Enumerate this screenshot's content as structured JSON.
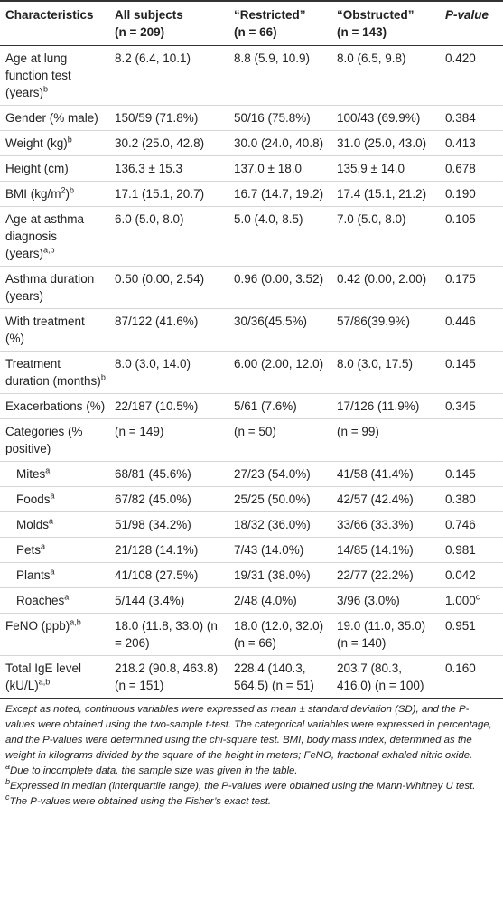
{
  "table": {
    "header": [
      [
        "Characteristics"
      ],
      [
        "All subjects",
        "(n = 209)"
      ],
      [
        "“Restricted”",
        "(n = 66)"
      ],
      [
        "“Obstructed”",
        "(n = 143)"
      ],
      [
        "P-value"
      ]
    ],
    "rows": [
      {
        "label": [
          "Age at lung function test (years)",
          {
            "sup": "b"
          }
        ],
        "cells": [
          [
            "8.2 (6.4, 10.1)"
          ],
          [
            "8.8 (5.9, 10.9)"
          ],
          [
            "8.0 (6.5, 9.8)"
          ],
          [
            "0.420"
          ]
        ]
      },
      {
        "label": [
          "Gender (% male)"
        ],
        "cells": [
          [
            "150/59 (71.8%)"
          ],
          [
            "50/16 (75.8%)"
          ],
          [
            "100/43 (69.9%)"
          ],
          [
            "0.384"
          ]
        ]
      },
      {
        "label": [
          "Weight (kg)",
          {
            "sup": "b"
          }
        ],
        "cells": [
          [
            "30.2 (25.0, 42.8)"
          ],
          [
            "30.0 (24.0, 40.8)"
          ],
          [
            "31.0 (25.0, 43.0)"
          ],
          [
            "0.413"
          ]
        ]
      },
      {
        "label": [
          "Height (cm)"
        ],
        "cells": [
          [
            "136.3 ± 15.3"
          ],
          [
            "137.0 ± 18.0"
          ],
          [
            "135.9 ± 14.0"
          ],
          [
            "0.678"
          ]
        ]
      },
      {
        "label": [
          "BMI (kg/m",
          {
            "sup": "2"
          },
          ")",
          {
            "sup": "b"
          }
        ],
        "cells": [
          [
            "17.1 (15.1, 20.7)"
          ],
          [
            "16.7 (14.7, 19.2)"
          ],
          [
            "17.4 (15.1, 21.2)"
          ],
          [
            "0.190"
          ]
        ]
      },
      {
        "label": [
          "Age at asthma diagnosis (years)",
          {
            "sup": "a,b"
          }
        ],
        "cells": [
          [
            "6.0 (5.0, 8.0)"
          ],
          [
            "5.0 (4.0, 8.5)"
          ],
          [
            "7.0 (5.0, 8.0)"
          ],
          [
            "0.105"
          ]
        ]
      },
      {
        "label": [
          "Asthma duration (years)"
        ],
        "cells": [
          [
            "0.50 (0.00, 2.54)"
          ],
          [
            "0.96 (0.00, 3.52)"
          ],
          [
            "0.42 (0.00, 2.00)"
          ],
          [
            "0.175"
          ]
        ]
      },
      {
        "label": [
          "With treatment (%)"
        ],
        "cells": [
          [
            "87/122 (41.6%)"
          ],
          [
            "30/36(45.5%)"
          ],
          [
            "57/86(39.9%)"
          ],
          [
            "0.446"
          ]
        ]
      },
      {
        "label": [
          "Treatment duration (months)",
          {
            "sup": "b"
          }
        ],
        "cells": [
          [
            "8.0 (3.0, 14.0)"
          ],
          [
            "6.00 (2.00, 12.0)"
          ],
          [
            "8.0 (3.0, 17.5)"
          ],
          [
            "0.145"
          ]
        ]
      },
      {
        "label": [
          "Exacerbations (%)"
        ],
        "cells": [
          [
            "22/187 (10.5%)"
          ],
          [
            "5/61 (7.6%)"
          ],
          [
            "17/126 (11.9%)"
          ],
          [
            "0.345"
          ]
        ]
      },
      {
        "label": [
          "Categories (% positive)"
        ],
        "cells": [
          [
            "(n = 149)"
          ],
          [
            "(n = 50)"
          ],
          [
            "(n = 99)"
          ],
          []
        ]
      },
      {
        "indent": true,
        "label": [
          "Mites",
          {
            "sup": "a"
          }
        ],
        "cells": [
          [
            "68/81 (45.6%)"
          ],
          [
            "27/23 (54.0%)"
          ],
          [
            "41/58 (41.4%)"
          ],
          [
            "0.145"
          ]
        ]
      },
      {
        "indent": true,
        "label": [
          "Foods",
          {
            "sup": "a"
          }
        ],
        "cells": [
          [
            "67/82 (45.0%)"
          ],
          [
            "25/25 (50.0%)"
          ],
          [
            "42/57 (42.4%)"
          ],
          [
            "0.380"
          ]
        ]
      },
      {
        "indent": true,
        "label": [
          "Molds",
          {
            "sup": "a"
          }
        ],
        "cells": [
          [
            "51/98 (34.2%)"
          ],
          [
            "18/32 (36.0%)"
          ],
          [
            "33/66 (33.3%)"
          ],
          [
            "0.746"
          ]
        ]
      },
      {
        "indent": true,
        "label": [
          "Pets",
          {
            "sup": "a"
          }
        ],
        "cells": [
          [
            "21/128 (14.1%)"
          ],
          [
            "7/43 (14.0%)"
          ],
          [
            "14/85 (14.1%)"
          ],
          [
            "0.981"
          ]
        ]
      },
      {
        "indent": true,
        "label": [
          "Plants",
          {
            "sup": "a"
          }
        ],
        "cells": [
          [
            "41/108 (27.5%)"
          ],
          [
            "19/31 (38.0%)"
          ],
          [
            "22/77 (22.2%)"
          ],
          [
            "0.042"
          ]
        ]
      },
      {
        "indent": true,
        "label": [
          "Roaches",
          {
            "sup": "a"
          }
        ],
        "cells": [
          [
            "5/144 (3.4%)"
          ],
          [
            "2/48 (4.0%)"
          ],
          [
            "3/96 (3.0%)"
          ],
          [
            "1.000",
            {
              "sup": "c"
            }
          ]
        ]
      },
      {
        "label": [
          "FeNO (ppb)",
          {
            "sup": "a,b"
          }
        ],
        "cells": [
          [
            "18.0 (11.8, 33.0) (n = 206)"
          ],
          [
            "18.0 (12.0, 32.0) (n = 66)"
          ],
          [
            "19.0 (11.0, 35.0) (n = 140)"
          ],
          [
            "0.951"
          ]
        ]
      },
      {
        "label": [
          "Total IgE level (kU/L)",
          {
            "sup": "a,b"
          }
        ],
        "cells": [
          [
            "218.2 (90.8, 463.8) (n = 151)"
          ],
          [
            "228.4 (140.3, 564.5) (n = 51)"
          ],
          [
            "203.7 (80.3, 416.0) (n = 100)"
          ],
          [
            "0.160"
          ]
        ]
      }
    ],
    "notes": [
      [
        "Except as noted, continuous variables were expressed as mean ± standard deviation (SD), and the P-values were obtained using the two-sample t-test. The categorical variables were expressed in percentage, and the P-values were determined using the chi-square test. BMI, body mass index, determined as the weight in kilograms divided by the square of the height in meters; FeNO, fractional exhaled nitric oxide."
      ],
      [
        {
          "sup": "a"
        },
        "Due to incomplete data, the sample size was given in the table."
      ],
      [
        {
          "sup": "b"
        },
        "Expressed in median (interquartile range), the P-values were obtained using the Mann-Whitney U test."
      ],
      [
        {
          "sup": "c"
        },
        "The P-values were obtained using the Fisher’s exact test."
      ]
    ]
  }
}
